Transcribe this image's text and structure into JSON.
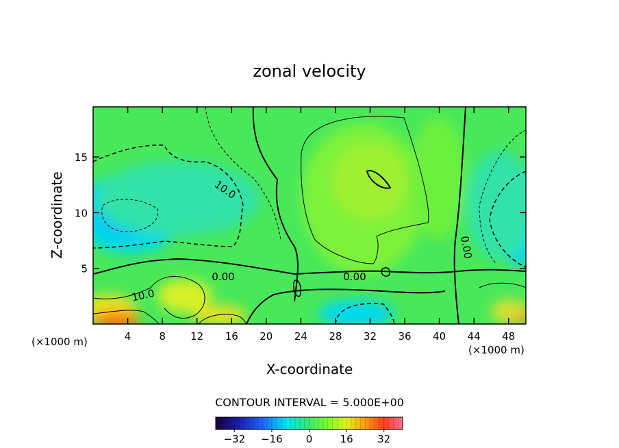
{
  "chart_data": {
    "type": "heatmap",
    "title": "zonal velocity",
    "xlabel": "X-coordinate",
    "ylabel": "Z-coordinate",
    "x_unit": "(×1000 m)",
    "z_unit": "(×1000 m)",
    "xlim": [
      0,
      50
    ],
    "ylim": [
      0,
      19.5
    ],
    "x_ticks": [
      4,
      8,
      12,
      16,
      20,
      24,
      28,
      32,
      36,
      40,
      44,
      48
    ],
    "y_ticks": [
      5,
      10,
      15
    ],
    "contour_interval_text": "CONTOUR INTERVAL = 5.000E+00",
    "contour_labels": [
      {
        "text": "10.0",
        "x": 15,
        "z": 12.5
      },
      {
        "text": "0.00",
        "x": 15,
        "z": 4.5
      },
      {
        "text": "10.0",
        "x": 6,
        "z": 2.7
      },
      {
        "text": "0.00",
        "x": 30.5,
        "z": 4.5
      },
      {
        "text": "0.00",
        "x": 42.5,
        "z": 7
      }
    ],
    "colorbar": {
      "min": -40,
      "max": 40,
      "ticks": [
        -32,
        -16,
        0,
        16,
        32
      ]
    },
    "grid": false,
    "legend": "colorbar bottom-center"
  }
}
